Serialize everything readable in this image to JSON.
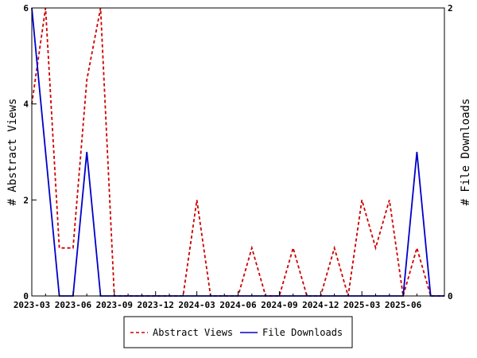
{
  "chart_data": {
    "type": "line",
    "x": [
      "2023-03",
      "2023-04",
      "2023-05",
      "2023-06",
      "2023-07",
      "2023-08",
      "2023-09",
      "2023-10",
      "2023-11",
      "2023-12",
      "2024-01",
      "2024-02",
      "2024-03",
      "2024-04",
      "2024-05",
      "2024-06",
      "2024-07",
      "2024-08",
      "2024-09",
      "2024-10",
      "2024-11",
      "2024-12",
      "2025-01",
      "2025-02",
      "2025-03",
      "2025-04",
      "2025-05",
      "2025-06",
      "2025-07",
      "2025-08",
      "2025-09"
    ],
    "x_tick_labels": [
      "2023-03",
      "2023-06",
      "2023-09",
      "2023-12",
      "2024-03",
      "2024-06",
      "2024-09",
      "2024-12",
      "2025-03",
      "2025-06"
    ],
    "series": [
      {
        "name": "Abstract Views",
        "axis": "left",
        "color": "#cc0000",
        "dash": "dashed",
        "values": [
          4,
          6,
          1,
          1,
          4.5,
          6,
          0,
          0,
          0,
          0,
          0,
          0,
          2,
          0,
          0,
          0,
          1,
          0,
          0,
          1,
          0,
          0,
          1,
          0,
          2,
          1,
          2,
          0,
          1,
          0,
          0
        ]
      },
      {
        "name": "File Downloads",
        "axis": "right",
        "color": "#0000cc",
        "dash": "solid",
        "values": [
          2,
          1,
          0,
          0,
          1,
          0,
          0,
          0,
          0,
          0,
          0,
          0,
          0,
          0,
          0,
          0,
          0,
          0,
          0,
          0,
          0,
          0,
          0,
          0,
          0,
          0,
          0,
          0,
          1,
          0,
          0
        ]
      }
    ],
    "y_left": {
      "label": "# Abstract Views",
      "ylim": [
        0,
        6
      ],
      "ticks": [
        "0",
        "2",
        "4",
        "6"
      ]
    },
    "y_right": {
      "label": "# File Downloads",
      "ylim": [
        0,
        2
      ],
      "ticks": [
        "0",
        "2"
      ]
    },
    "grid": false,
    "legend_position": "bottom"
  }
}
